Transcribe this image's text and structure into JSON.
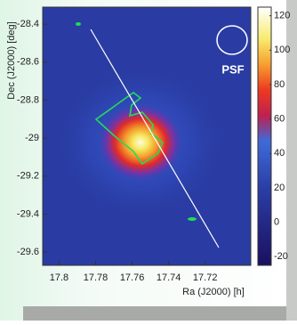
{
  "chart_data": {
    "type": "image",
    "xlabel": "Ra (J2000) [h]",
    "ylabel": "Dec (J2000) [deg]",
    "xlim": [
      17.809,
      17.695
    ],
    "ylim": [
      -29.67,
      -28.31
    ],
    "xticks": [
      17.8,
      17.78,
      17.76,
      17.74,
      17.72
    ],
    "yticks": [
      -29.6,
      -29.4,
      -29.2,
      -29,
      -28.8,
      -28.6,
      -28.4
    ],
    "colorbar": {
      "lim": [
        -25,
        125
      ],
      "ticks": [
        -20,
        0,
        20,
        40,
        60,
        80,
        100,
        120
      ]
    },
    "annotation": "PSF"
  }
}
